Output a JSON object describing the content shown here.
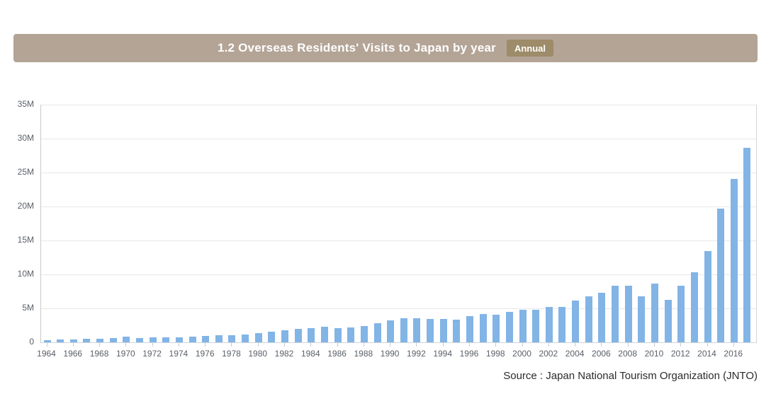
{
  "header": {
    "title": "1.2 Overseas Residents' Visits to Japan by year",
    "badge": "Annual",
    "bg_color": "#b3a496",
    "badge_bg_color": "#9d8b69",
    "text_color": "#ffffff"
  },
  "source": {
    "text": "Source : Japan National Tourism Organization (JNTO)"
  },
  "chart_data": {
    "type": "bar",
    "title": "1.2 Overseas Residents' Visits to Japan by year",
    "frequency": "Annual",
    "unit": "millions of visits",
    "xlabel": "",
    "ylabel": "",
    "ylim": [
      0,
      35
    ],
    "grid": true,
    "bar_color": "#82b4e6",
    "gridline_color": "#e8e8e8",
    "axis_color": "#c9c9c9",
    "label_color": "#5a6068",
    "x": [
      1964,
      1965,
      1966,
      1967,
      1968,
      1969,
      1970,
      1971,
      1972,
      1973,
      1974,
      1975,
      1976,
      1977,
      1978,
      1979,
      1980,
      1981,
      1982,
      1983,
      1984,
      1985,
      1986,
      1987,
      1988,
      1989,
      1990,
      1991,
      1992,
      1993,
      1994,
      1995,
      1996,
      1997,
      1998,
      1999,
      2000,
      2001,
      2002,
      2003,
      2004,
      2005,
      2006,
      2007,
      2008,
      2009,
      2010,
      2011,
      2012,
      2013,
      2014,
      2015,
      2016,
      2017
    ],
    "values": [
      0.35,
      0.37,
      0.43,
      0.48,
      0.52,
      0.61,
      0.85,
      0.66,
      0.72,
      0.78,
      0.76,
      0.81,
      0.91,
      1.03,
      1.04,
      1.11,
      1.32,
      1.58,
      1.79,
      1.97,
      2.11,
      2.33,
      2.06,
      2.15,
      2.36,
      2.84,
      3.24,
      3.53,
      3.58,
      3.41,
      3.47,
      3.35,
      3.84,
      4.22,
      4.11,
      4.44,
      4.76,
      4.77,
      5.24,
      5.21,
      6.14,
      6.73,
      7.33,
      8.35,
      8.35,
      6.79,
      8.61,
      6.22,
      8.36,
      10.36,
      13.41,
      19.74,
      24.04,
      28.69
    ],
    "yticks": [
      {
        "value": 0,
        "label": "0"
      },
      {
        "value": 5,
        "label": "5M"
      },
      {
        "value": 10,
        "label": "10M"
      },
      {
        "value": 15,
        "label": "15M"
      },
      {
        "value": 20,
        "label": "20M"
      },
      {
        "value": 25,
        "label": "25M"
      },
      {
        "value": 30,
        "label": "30M"
      },
      {
        "value": 35,
        "label": "35M"
      }
    ],
    "xtick_years": [
      1964,
      1966,
      1968,
      1970,
      1972,
      1974,
      1976,
      1978,
      1980,
      1982,
      1984,
      1986,
      1988,
      1990,
      1992,
      1994,
      1996,
      1998,
      2000,
      2002,
      2004,
      2006,
      2008,
      2010,
      2012,
      2014,
      2016
    ]
  }
}
